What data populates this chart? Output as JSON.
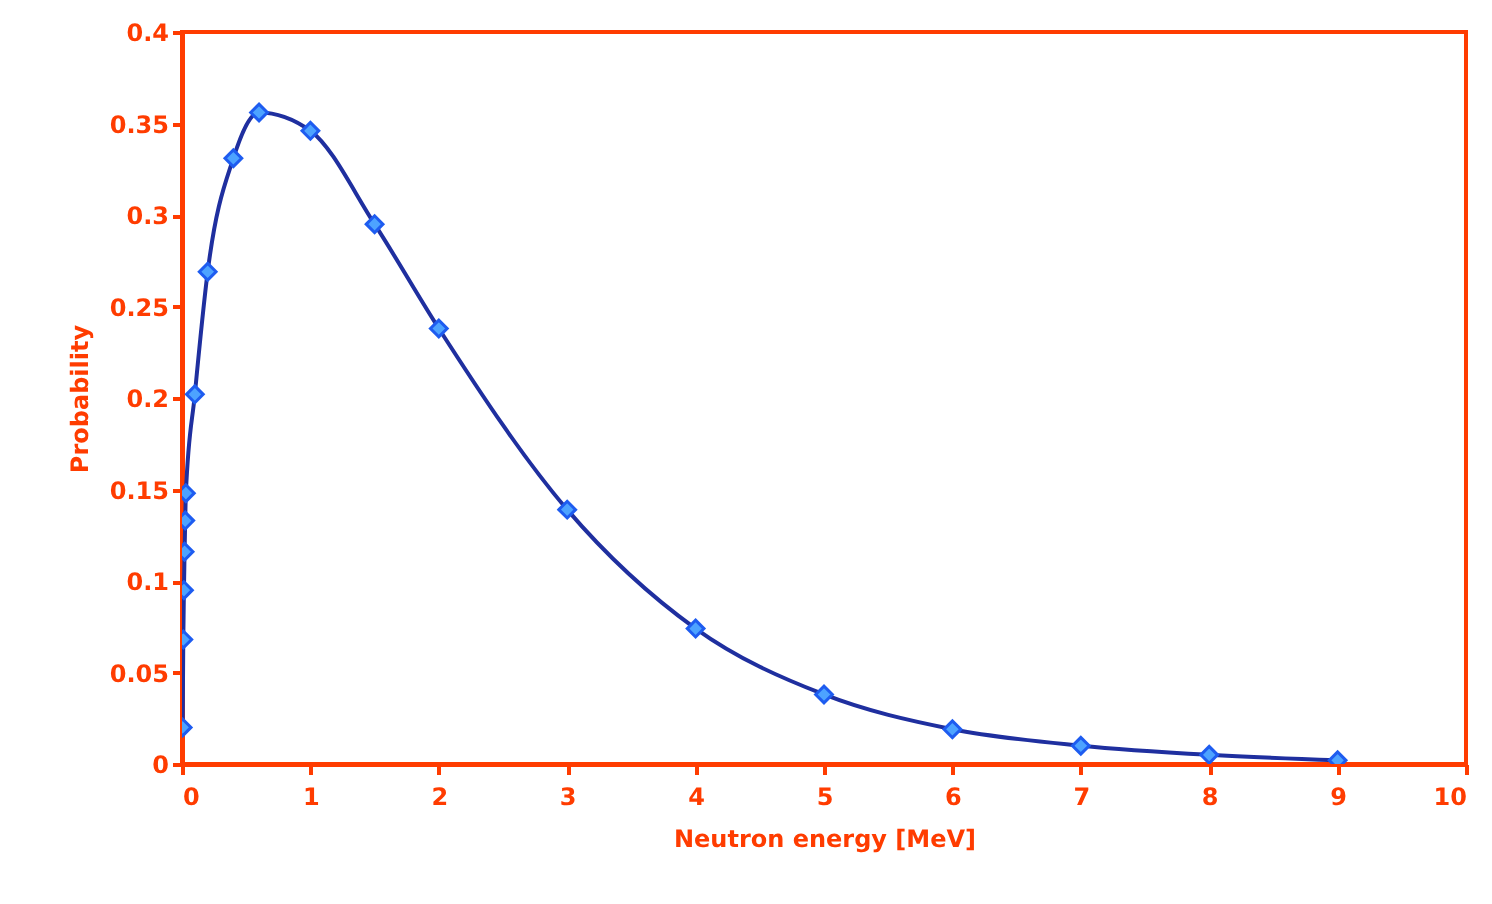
{
  "chart_data": {
    "type": "line",
    "xlabel": "Neutron energy [MeV]",
    "ylabel": "Probability",
    "x": [
      0.005,
      0.01,
      0.015,
      0.02,
      0.025,
      0.03,
      0.1,
      0.2,
      0.4,
      0.6,
      1,
      1.5,
      2,
      3,
      4,
      5,
      6,
      7,
      8,
      9
    ],
    "series": [
      {
        "color": "#1f2f9f",
        "values": [
          0.02,
          0.068,
          0.095,
          0.116,
          0.133,
          0.148,
          0.202,
          0.269,
          0.331,
          0.356,
          0.346,
          0.295,
          0.238,
          0.139,
          0.074,
          0.038,
          0.019,
          0.01,
          0.005,
          0.002
        ]
      }
    ],
    "xlim": [
      0,
      10
    ],
    "xticks": [
      0,
      1,
      2,
      3,
      4,
      5,
      6,
      7,
      8,
      9,
      10
    ],
    "ylim": [
      0,
      0.4
    ],
    "yticks": [
      0,
      0.05,
      0.1,
      0.15,
      0.2,
      0.25,
      0.3,
      0.35,
      0.4
    ],
    "grid": false,
    "marker": "diamond",
    "line_style": "solid"
  }
}
